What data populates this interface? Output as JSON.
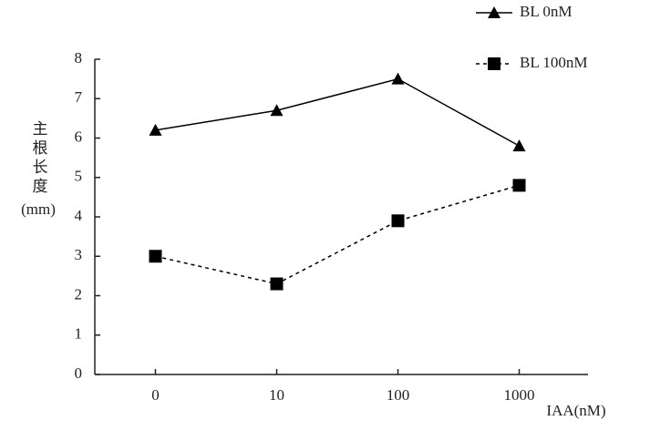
{
  "chart_data": {
    "type": "line",
    "x_label": "IAA(nM)",
    "y_label": [
      "主根长度",
      "(mm)"
    ],
    "categories": [
      "0",
      "10",
      "100",
      "1000"
    ],
    "series": [
      {
        "name": "BL 0nM",
        "color": "#000000",
        "marker": "triangle",
        "linestyle": "solid",
        "values": [
          6.2,
          6.7,
          7.5,
          5.8
        ]
      },
      {
        "name": "BL 100nM",
        "color": "#000000",
        "marker": "square",
        "linestyle": "dashed",
        "values": [
          3.0,
          2.3,
          3.9,
          4.8
        ]
      }
    ],
    "ylim": [
      0,
      8
    ],
    "yticks": [
      0,
      1,
      2,
      3,
      4,
      5,
      6,
      7,
      8
    ],
    "grid": false,
    "legend": "top-right"
  }
}
